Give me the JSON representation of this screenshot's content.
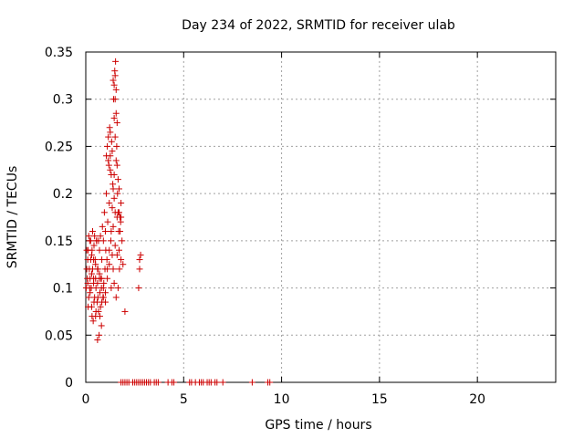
{
  "chart_data": {
    "type": "scatter",
    "title": "Day 234 of 2022, SRMTID for receiver ulab",
    "xlabel": "GPS time / hours",
    "ylabel": "SRMTID / TECUs",
    "xlim": [
      0,
      24
    ],
    "ylim": [
      0,
      0.35
    ],
    "xticks": [
      0,
      5,
      10,
      15,
      20
    ],
    "xtick_labels": [
      "0",
      "5",
      "10",
      "15",
      "20"
    ],
    "yticks": [
      0,
      0.05,
      0.1,
      0.15,
      0.2,
      0.25,
      0.3,
      0.35
    ],
    "ytick_labels": [
      "0",
      "0.05",
      "0.1",
      "0.15",
      "0.2",
      "0.25",
      "0.3",
      "0.35"
    ],
    "grid": true,
    "marker": "+",
    "marker_color": "#cc0000",
    "series": [
      {
        "name": "",
        "points": [
          [
            0.02,
            0.1
          ],
          [
            0.05,
            0.12
          ],
          [
            0.08,
            0.11
          ],
          [
            0.1,
            0.13
          ],
          [
            0.12,
            0.14
          ],
          [
            0.15,
            0.09
          ],
          [
            0.18,
            0.12
          ],
          [
            0.2,
            0.15
          ],
          [
            0.22,
            0.11
          ],
          [
            0.25,
            0.13
          ],
          [
            0.28,
            0.1
          ],
          [
            0.3,
            0.08
          ],
          [
            0.32,
            0.14
          ],
          [
            0.35,
            0.12
          ],
          [
            0.38,
            0.065
          ],
          [
            0.4,
            0.11
          ],
          [
            0.42,
            0.145
          ],
          [
            0.45,
            0.09
          ],
          [
            0.48,
            0.13
          ],
          [
            0.5,
            0.07
          ],
          [
            0.52,
            0.1
          ],
          [
            0.55,
            0.15
          ],
          [
            0.58,
            0.085
          ],
          [
            0.6,
            0.045
          ],
          [
            0.62,
            0.12
          ],
          [
            0.65,
            0.075
          ],
          [
            0.68,
            0.05
          ],
          [
            0.7,
            0.14
          ],
          [
            0.72,
            0.095
          ],
          [
            0.75,
            0.08
          ],
          [
            0.78,
            0.11
          ],
          [
            0.8,
            0.06
          ],
          [
            0.82,
            0.13
          ],
          [
            0.85,
            0.165
          ],
          [
            0.88,
            0.09
          ],
          [
            0.9,
            0.15
          ],
          [
            0.92,
            0.105
          ],
          [
            0.95,
            0.18
          ],
          [
            0.98,
            0.12
          ],
          [
            1.0,
            0.16
          ],
          [
            1.02,
            0.14
          ],
          [
            1.05,
            0.2
          ],
          [
            1.08,
            0.13
          ],
          [
            1.1,
            0.25
          ],
          [
            1.12,
            0.17
          ],
          [
            1.15,
            0.26
          ],
          [
            1.18,
            0.23
          ],
          [
            1.2,
            0.19
          ],
          [
            1.22,
            0.27
          ],
          [
            1.25,
            0.24
          ],
          [
            1.28,
            0.15
          ],
          [
            1.3,
            0.22
          ],
          [
            1.32,
            0.255
          ],
          [
            1.35,
            0.135
          ],
          [
            1.38,
            0.21
          ],
          [
            1.4,
            0.32
          ],
          [
            1.42,
            0.3
          ],
          [
            1.45,
            0.28
          ],
          [
            1.48,
            0.33
          ],
          [
            1.5,
            0.26
          ],
          [
            1.52,
            0.34
          ],
          [
            1.55,
            0.31
          ],
          [
            1.58,
            0.25
          ],
          [
            1.6,
            0.23
          ],
          [
            1.62,
            0.2
          ],
          [
            1.65,
            0.18
          ],
          [
            1.68,
            0.16
          ],
          [
            1.7,
            0.14
          ],
          [
            1.72,
            0.12
          ],
          [
            1.75,
            0.175
          ],
          [
            1.78,
            0.17
          ],
          [
            1.8,
            0.13
          ],
          [
            2.0,
            0.075
          ],
          [
            2.7,
            0.1
          ],
          [
            2.75,
            0.13
          ],
          [
            2.75,
            0.12
          ],
          [
            2.8,
            0.135
          ],
          [
            0.05,
            0.14
          ],
          [
            0.15,
            0.155
          ],
          [
            0.25,
            0.15
          ],
          [
            0.35,
            0.16
          ],
          [
            0.45,
            0.155
          ],
          [
            0.55,
            0.15
          ],
          [
            0.65,
            0.15
          ],
          [
            0.75,
            0.155
          ],
          [
            0.3,
            0.135
          ],
          [
            0.4,
            0.13
          ],
          [
            0.5,
            0.125
          ],
          [
            0.6,
            0.12
          ],
          [
            0.7,
            0.115
          ],
          [
            0.8,
            0.11
          ],
          [
            0.9,
            0.1
          ],
          [
            1.0,
            0.095
          ],
          [
            1.1,
            0.12
          ],
          [
            1.2,
            0.14
          ],
          [
            1.3,
            0.16
          ],
          [
            1.4,
            0.165
          ],
          [
            1.5,
            0.18
          ],
          [
            1.6,
            0.175
          ],
          [
            1.7,
            0.18
          ],
          [
            1.8,
            0.175
          ],
          [
            0.1,
            0.105
          ],
          [
            0.2,
            0.1
          ],
          [
            0.3,
            0.115
          ],
          [
            0.4,
            0.105
          ],
          [
            0.5,
            0.11
          ],
          [
            0.6,
            0.105
          ],
          [
            0.7,
            0.11
          ],
          [
            0.8,
            0.1
          ],
          [
            0.9,
            0.09
          ],
          [
            1.0,
            0.085
          ],
          [
            1.1,
            0.11
          ],
          [
            1.2,
            0.125
          ],
          [
            1.3,
            0.1
          ],
          [
            1.4,
            0.12
          ],
          [
            1.5,
            0.145
          ],
          [
            1.6,
            0.135
          ],
          [
            0.12,
            0.08
          ],
          [
            0.22,
            0.095
          ],
          [
            0.32,
            0.07
          ],
          [
            0.42,
            0.085
          ],
          [
            0.52,
            0.075
          ],
          [
            0.62,
            0.09
          ],
          [
            0.72,
            0.07
          ],
          [
            0.82,
            0.085
          ],
          [
            1.15,
            0.235
          ],
          [
            1.25,
            0.225
          ],
          [
            1.35,
            0.245
          ],
          [
            1.45,
            0.22
          ],
          [
            1.55,
            0.235
          ],
          [
            1.65,
            0.215
          ],
          [
            1.05,
            0.24
          ],
          [
            1.25,
            0.265
          ],
          [
            1.5,
            0.3
          ],
          [
            1.55,
            0.285
          ],
          [
            1.45,
            0.315
          ],
          [
            1.5,
            0.325
          ],
          [
            1.6,
            0.275
          ],
          [
            1.4,
            0.205
          ],
          [
            1.35,
            0.185
          ],
          [
            1.45,
            0.195
          ],
          [
            1.8,
            0.19
          ],
          [
            1.7,
            0.205
          ],
          [
            1.75,
            0.16
          ],
          [
            1.85,
            0.15
          ],
          [
            1.9,
            0.125
          ],
          [
            1.65,
            0.1
          ],
          [
            1.55,
            0.09
          ],
          [
            1.45,
            0.105
          ],
          [
            1.8,
            0
          ],
          [
            1.9,
            0
          ],
          [
            2.0,
            0
          ],
          [
            2.1,
            0
          ],
          [
            2.2,
            0
          ],
          [
            2.4,
            0
          ],
          [
            2.5,
            0
          ],
          [
            2.6,
            0
          ],
          [
            2.7,
            0
          ],
          [
            2.8,
            0
          ],
          [
            2.9,
            0
          ],
          [
            3.0,
            0
          ],
          [
            3.1,
            0
          ],
          [
            3.2,
            0
          ],
          [
            3.3,
            0
          ],
          [
            3.5,
            0
          ],
          [
            3.6,
            0
          ],
          [
            3.7,
            0
          ],
          [
            4.2,
            0
          ],
          [
            4.4,
            0
          ],
          [
            4.5,
            0
          ],
          [
            5.3,
            0
          ],
          [
            5.4,
            0
          ],
          [
            5.6,
            0
          ],
          [
            5.8,
            0
          ],
          [
            5.9,
            0
          ],
          [
            6.0,
            0
          ],
          [
            6.2,
            0
          ],
          [
            6.3,
            0
          ],
          [
            6.4,
            0
          ],
          [
            6.6,
            0
          ],
          [
            6.7,
            0
          ],
          [
            7.0,
            0
          ],
          [
            8.5,
            0
          ],
          [
            9.3,
            0
          ],
          [
            9.4,
            0
          ]
        ]
      }
    ]
  }
}
